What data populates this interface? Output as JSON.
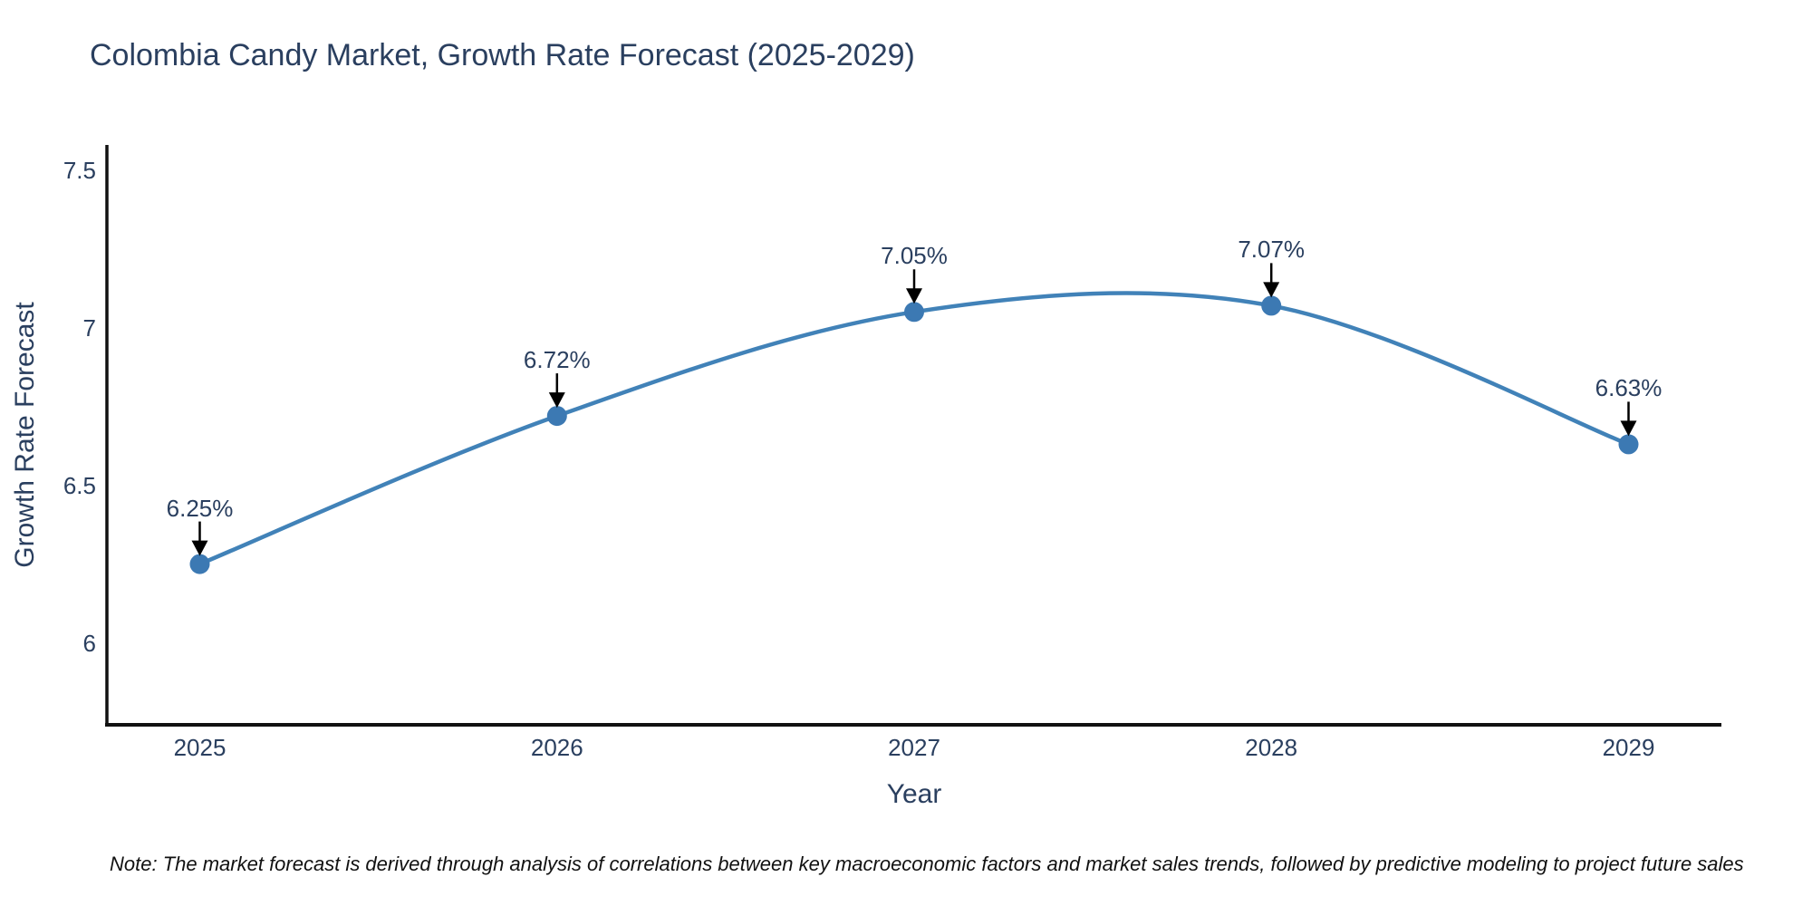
{
  "title": "Colombia Candy Market, Growth Rate Forecast (2025-2029)",
  "note": "Note: The market forecast is derived through analysis of correlations between key macroeconomic factors and market sales trends, followed by predictive modeling to project future sales",
  "chart_data": {
    "type": "line",
    "title": "Colombia Candy Market, Growth Rate Forecast (2025-2029)",
    "x": [
      2025,
      2026,
      2027,
      2028,
      2029
    ],
    "y": [
      6.25,
      6.72,
      7.05,
      7.07,
      6.63
    ],
    "point_labels": [
      "6.25%",
      "6.72%",
      "7.05%",
      "7.07%",
      "6.63%"
    ],
    "xlabel": "Year",
    "ylabel": "Growth Rate Forecast",
    "x_ticks": [
      2025,
      2026,
      2027,
      2028,
      2029
    ],
    "y_ticks": [
      6,
      6.5,
      7,
      7.5
    ],
    "xlim": [
      2024.74,
      2029.26
    ],
    "ylim": [
      5.74,
      7.58
    ],
    "line_shape": "spline",
    "grid": false,
    "legend": "none",
    "annotation_arrows": true,
    "colors": {
      "line": "#4182b8",
      "marker": "#3c79b3",
      "text": "#2a3f5f",
      "axis": "#111111",
      "arrow": "#000000",
      "note_text": "#111111",
      "background": "#ffffff"
    }
  }
}
